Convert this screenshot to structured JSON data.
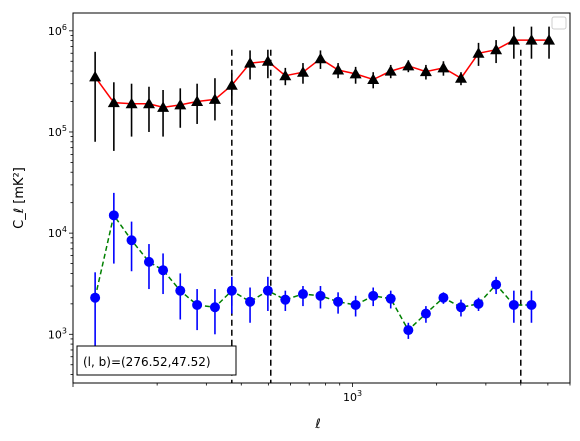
{
  "chart_data": {
    "type": "line",
    "xscale": "log",
    "yscale": "log",
    "xlim": [
      100,
      6000
    ],
    "ylim": [
      330,
      1500000
    ],
    "xlabel": "ℓ",
    "ylabel": "C_ℓ [mK²]",
    "x_tick_labels": [
      {
        "value": 1000,
        "base": "10",
        "exp": "3"
      }
    ],
    "y_tick_labels": [
      {
        "value": 1000,
        "base": "10",
        "exp": "3"
      },
      {
        "value": 10000,
        "base": "10",
        "exp": "4"
      },
      {
        "value": 100000,
        "base": "10",
        "exp": "5"
      },
      {
        "value": 1000000,
        "base": "10",
        "exp": "6"
      }
    ],
    "grid": false,
    "legend": "top-right (empty)",
    "annotation": "(l, b)=(276.52,47.52)",
    "annotation_parts": {
      "open": "(",
      "l": "l",
      "comma": ", ",
      "b": "b",
      "rest": ")=(276.52,47.52)"
    },
    "vlines": [
      370,
      510,
      4000
    ],
    "series": [
      {
        "marker": "triangle",
        "color": "#000000",
        "line_color": "#ff0000",
        "line_style": "solid",
        "x": [
          120,
          140,
          162,
          187,
          210,
          242,
          278,
          322,
          370,
          430,
          498,
          575,
          665,
          768,
          888,
          1026,
          1186,
          1370,
          1584,
          1831,
          2115,
          2444,
          2824,
          3264,
          3778,
          4368,
          5048
        ],
        "y": [
          350000,
          195000,
          190000,
          190000,
          175000,
          185000,
          200000,
          210000,
          290000,
          480000,
          500000,
          360000,
          390000,
          530000,
          410000,
          375000,
          330000,
          400000,
          450000,
          395000,
          430000,
          340000,
          600000,
          650000,
          810000,
          810000,
          810000
        ],
        "err_low": [
          80000,
          65000,
          90000,
          100000,
          90000,
          110000,
          120000,
          130000,
          190000,
          330000,
          340000,
          290000,
          300000,
          420000,
          340000,
          300000,
          270000,
          340000,
          390000,
          330000,
          360000,
          290000,
          450000,
          480000,
          530000,
          530000,
          530000
        ],
        "err_high": [
          620000,
          310000,
          300000,
          280000,
          260000,
          270000,
          300000,
          340000,
          380000,
          640000,
          650000,
          430000,
          480000,
          640000,
          480000,
          440000,
          390000,
          460000,
          510000,
          460000,
          500000,
          390000,
          760000,
          810000,
          1100000,
          1100000,
          1100000
        ]
      },
      {
        "marker": "circle",
        "color": "#0000ff",
        "line_color": "#008000",
        "line_style": "dashed",
        "x": [
          120,
          140,
          162,
          187,
          210,
          242,
          278,
          322,
          370,
          430,
          498,
          575,
          665,
          768,
          888,
          1026,
          1186,
          1370,
          1584,
          1831,
          2115,
          2444,
          2824,
          3264,
          3778,
          4368
        ],
        "y": [
          2300,
          15000,
          8500,
          5200,
          4300,
          2700,
          1950,
          1850,
          2700,
          2100,
          2700,
          2200,
          2500,
          2400,
          2100,
          1950,
          2400,
          2250,
          1100,
          1600,
          2300,
          1850,
          2000,
          3100,
          1950,
          1950
        ],
        "err_low": [
          700,
          5000,
          4200,
          2800,
          2500,
          1400,
          1100,
          1000,
          1600,
          1300,
          1700,
          1700,
          1900,
          1800,
          1600,
          1500,
          1900,
          1800,
          900,
          1300,
          2000,
          1500,
          1700,
          2500,
          1300,
          1300
        ],
        "err_high": [
          4100,
          25000,
          13000,
          7800,
          6300,
          4000,
          2800,
          2800,
          3700,
          2900,
          3700,
          2700,
          3000,
          3000,
          2600,
          2400,
          2900,
          2700,
          1300,
          1900,
          2600,
          2200,
          2300,
          3700,
          2700,
          2700
        ]
      }
    ]
  }
}
